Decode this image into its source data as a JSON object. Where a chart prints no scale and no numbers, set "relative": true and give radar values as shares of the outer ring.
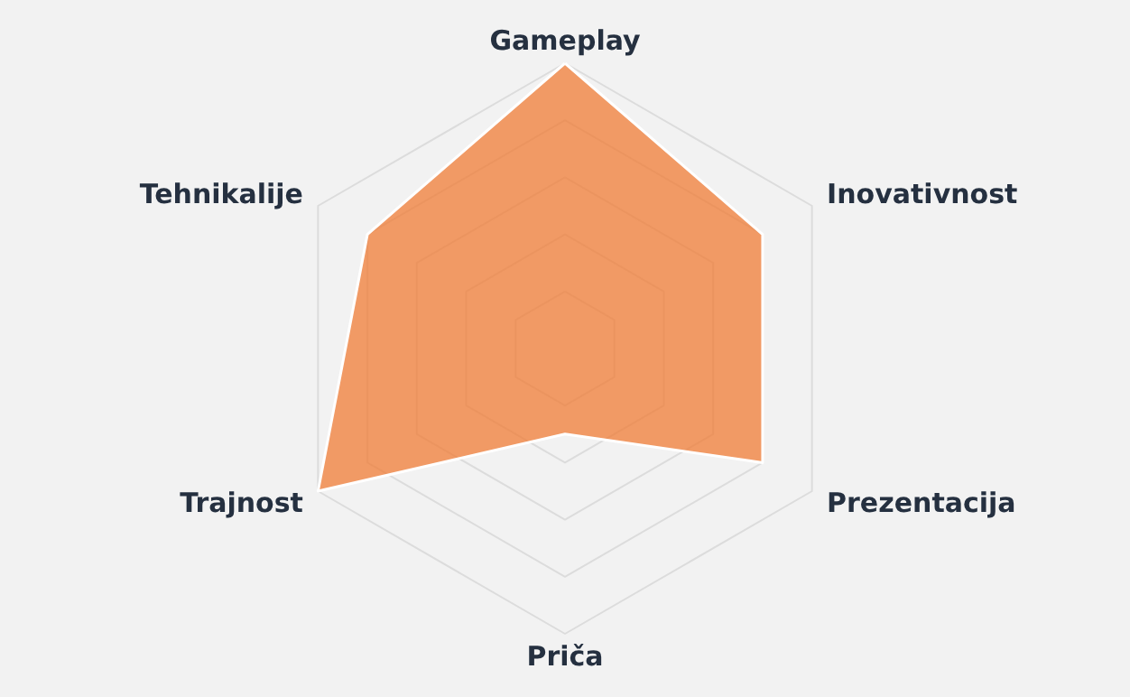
{
  "chart_data": {
    "type": "radar",
    "relative": true,
    "grid": true,
    "categories": [
      "Gameplay",
      "Inovativnost",
      "Prezentacija",
      "Priča",
      "Trajnost",
      "Tehnikalije"
    ],
    "series": [
      {
        "color": "#f07c35",
        "values": [
          1.0,
          0.8,
          0.8,
          0.3,
          1.0,
          0.8
        ]
      }
    ]
  }
}
